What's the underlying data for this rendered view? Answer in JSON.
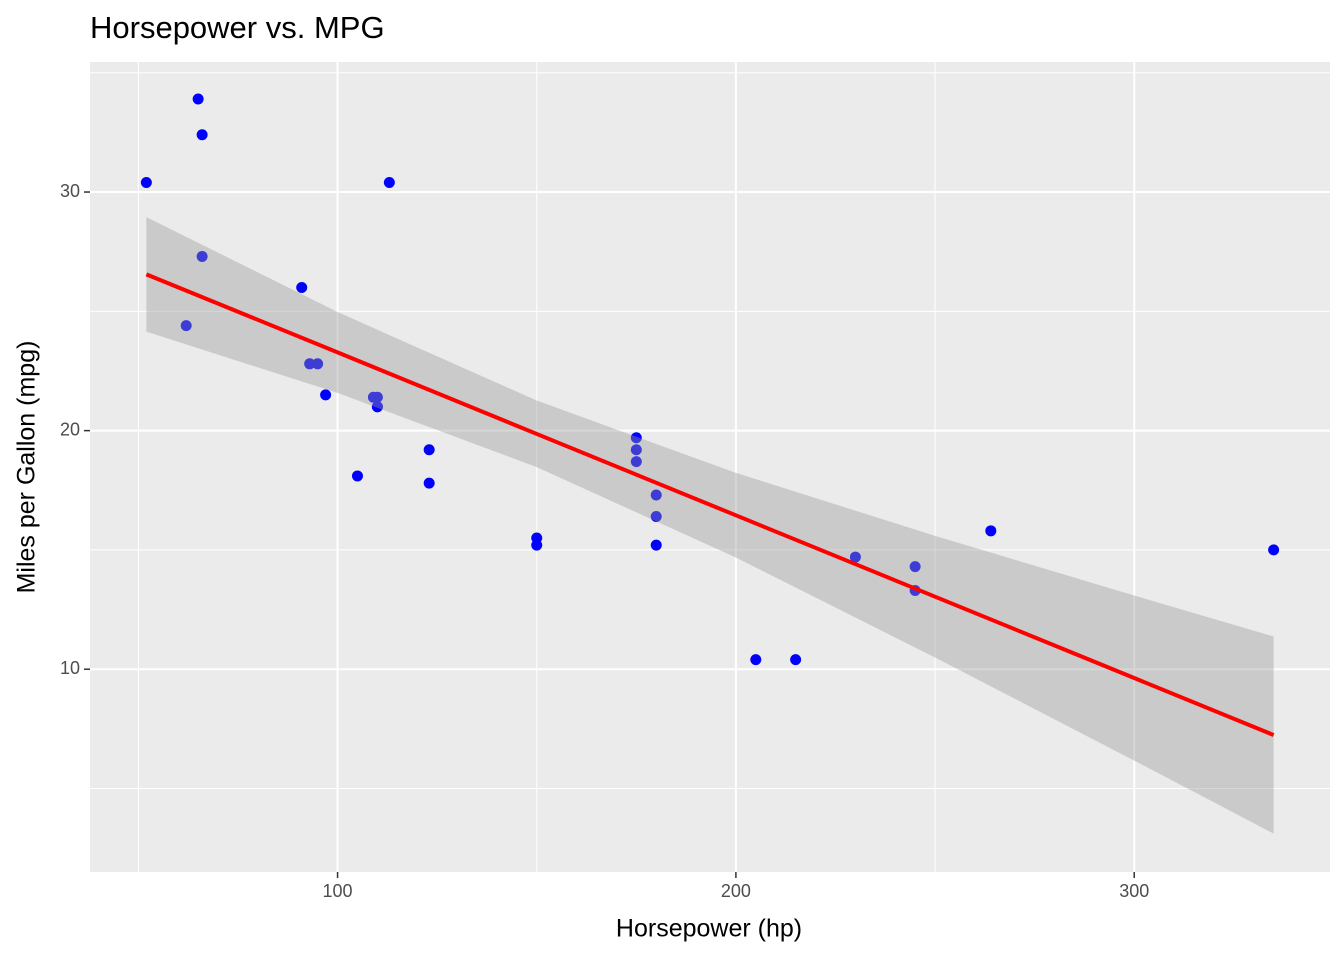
{
  "chart_data": {
    "type": "scatter",
    "title": "Horsepower vs. MPG",
    "x_label": "Horsepower (hp)",
    "y_label": "Miles per Gallon (mpg)",
    "x": [
      110,
      110,
      93,
      110,
      175,
      105,
      245,
      62,
      95,
      123,
      123,
      180,
      180,
      180,
      205,
      215,
      230,
      66,
      52,
      65,
      97,
      150,
      150,
      245,
      175,
      66,
      91,
      113,
      264,
      175,
      335,
      109
    ],
    "values": [
      21,
      21,
      22.8,
      21.4,
      18.7,
      18.1,
      14.3,
      24.4,
      22.8,
      19.2,
      17.8,
      16.4,
      17.3,
      15.2,
      10.4,
      10.4,
      14.7,
      32.4,
      30.4,
      33.9,
      21.5,
      15.5,
      15.2,
      13.3,
      19.2,
      27.3,
      26,
      30.4,
      15.8,
      19.7,
      15,
      21.4
    ],
    "color": "#0000ff",
    "fit": {
      "x": [
        52,
        100,
        150,
        200,
        250,
        300,
        335
      ],
      "values": [
        26.55,
        23.28,
        19.86,
        16.45,
        13.04,
        9.63,
        7.24
      ],
      "lower": [
        24.15,
        21.58,
        18.47,
        14.68,
        10.49,
        6.17,
        3.11
      ],
      "upper": [
        28.95,
        24.97,
        21.26,
        18.23,
        15.59,
        13.09,
        11.37
      ],
      "color": "#ff0000",
      "band_color": "#999999"
    },
    "xlim": [
      37.85,
      349.15
    ],
    "ylim": [
      1.5,
      35.45
    ],
    "xticks": [
      100,
      200,
      300
    ],
    "yticks": [
      10,
      20,
      30
    ],
    "x_minor_breaks": [
      50,
      150,
      250
    ],
    "y_minor_breaks": [
      5,
      15,
      25,
      35
    ],
    "grid": true
  }
}
